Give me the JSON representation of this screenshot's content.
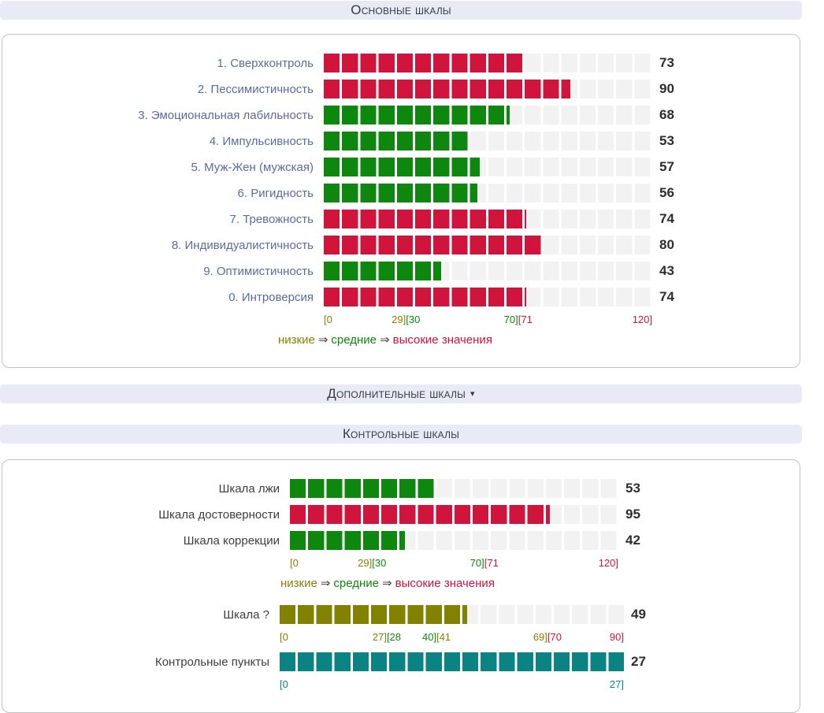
{
  "colors": {
    "red": "#d0143c",
    "green": "#0d870d",
    "olive": "#828200",
    "teal": "#0c8383",
    "header_bg": "#e9eaf6",
    "label_link": "#5b6b9d",
    "label_plain": "#3e3e3e",
    "track_bg": "#f2f2f2"
  },
  "headers": {
    "main": "Основные шкалы",
    "additional": "Дополнительные шкалы",
    "additional_caret": "▾",
    "control": "Контрольные шкалы"
  },
  "legend": {
    "low": "низкие",
    "arrow1": "⇒",
    "mid": "средние",
    "arrow2": "⇒",
    "high": "высокие значения"
  },
  "chart_data": [
    {
      "type": "bar",
      "title": "Основные шкалы",
      "max": 120,
      "labels_interactable": true,
      "rows": [
        {
          "label": "1. Сверхконтроль",
          "value": 73,
          "color": "red"
        },
        {
          "label": "2. Пессимистичность",
          "value": 90,
          "color": "red"
        },
        {
          "label": "3. Эмоциональная лабильность",
          "value": 68,
          "color": "green"
        },
        {
          "label": "4. Импульсивность",
          "value": 53,
          "color": "green"
        },
        {
          "label": "5. Муж-Жен (мужская)",
          "value": 57,
          "color": "green"
        },
        {
          "label": "6. Ригидность",
          "value": 56,
          "color": "green"
        },
        {
          "label": "7. Тревожность",
          "value": 74,
          "color": "red"
        },
        {
          "label": "8. Индивидуалистичность",
          "value": 80,
          "color": "red"
        },
        {
          "label": "9. Оптимистичность",
          "value": 43,
          "color": "green"
        },
        {
          "label": "0. Интроверсия",
          "value": 74,
          "color": "red"
        }
      ],
      "axis": [
        {
          "pos": 0,
          "align": "left",
          "parts": [
            {
              "text": "[0",
              "color": "olive"
            }
          ]
        },
        {
          "pos": 25,
          "align": "center",
          "parts": [
            {
              "text": "29]",
              "color": "olive"
            },
            {
              "text": "[30",
              "color": "green"
            }
          ]
        },
        {
          "pos": 59.17,
          "align": "center",
          "parts": [
            {
              "text": "70]",
              "color": "green"
            },
            {
              "text": "[71",
              "color": "red"
            }
          ]
        },
        {
          "pos": 100,
          "align": "right",
          "parts": [
            {
              "text": "120]",
              "color": "red"
            }
          ]
        }
      ]
    },
    {
      "type": "bar",
      "title": "Контрольные шкалы",
      "max": 120,
      "labels_interactable": false,
      "rows": [
        {
          "label": "Шкала лжи",
          "value": 53,
          "color": "green"
        },
        {
          "label": "Шкала достоверности",
          "value": 95,
          "color": "red"
        },
        {
          "label": "Шкала коррекции",
          "value": 42,
          "color": "green"
        }
      ],
      "axis": [
        {
          "pos": 0,
          "align": "left",
          "parts": [
            {
              "text": "[0",
              "color": "olive"
            }
          ]
        },
        {
          "pos": 25,
          "align": "center",
          "parts": [
            {
              "text": "29]",
              "color": "olive"
            },
            {
              "text": "[30",
              "color": "green"
            }
          ]
        },
        {
          "pos": 59.17,
          "align": "center",
          "parts": [
            {
              "text": "70]",
              "color": "green"
            },
            {
              "text": "[71",
              "color": "red"
            }
          ]
        },
        {
          "pos": 100,
          "align": "right",
          "parts": [
            {
              "text": "120]",
              "color": "red"
            }
          ]
        }
      ]
    },
    {
      "type": "bar",
      "title": "Шкала ?",
      "max": 90,
      "labels_interactable": false,
      "rows": [
        {
          "label": "Шкала ?",
          "value": 49,
          "color": "olive"
        }
      ],
      "axis": [
        {
          "pos": 0,
          "align": "left",
          "parts": [
            {
              "text": "[0",
              "color": "olive"
            }
          ]
        },
        {
          "pos": 31.11,
          "align": "center",
          "parts": [
            {
              "text": "27]",
              "color": "olive"
            },
            {
              "text": "[28",
              "color": "green"
            }
          ]
        },
        {
          "pos": 45.56,
          "align": "center",
          "parts": [
            {
              "text": "40]",
              "color": "green"
            },
            {
              "text": "[41",
              "color": "olive"
            }
          ]
        },
        {
          "pos": 77.78,
          "align": "center",
          "parts": [
            {
              "text": "69]",
              "color": "olive"
            },
            {
              "text": "[70",
              "color": "red"
            }
          ]
        },
        {
          "pos": 100,
          "align": "right",
          "parts": [
            {
              "text": "90]",
              "color": "red"
            }
          ]
        }
      ]
    },
    {
      "type": "bar",
      "title": "Контрольные пункты",
      "max": 27,
      "labels_interactable": false,
      "rows": [
        {
          "label": "Контрольные пункты",
          "value": 27,
          "color": "teal"
        }
      ],
      "axis": [
        {
          "pos": 0,
          "align": "left",
          "parts": [
            {
              "text": "[0",
              "color": "teal"
            }
          ]
        },
        {
          "pos": 100,
          "align": "right",
          "parts": [
            {
              "text": "27]",
              "color": "teal"
            }
          ]
        }
      ]
    }
  ]
}
